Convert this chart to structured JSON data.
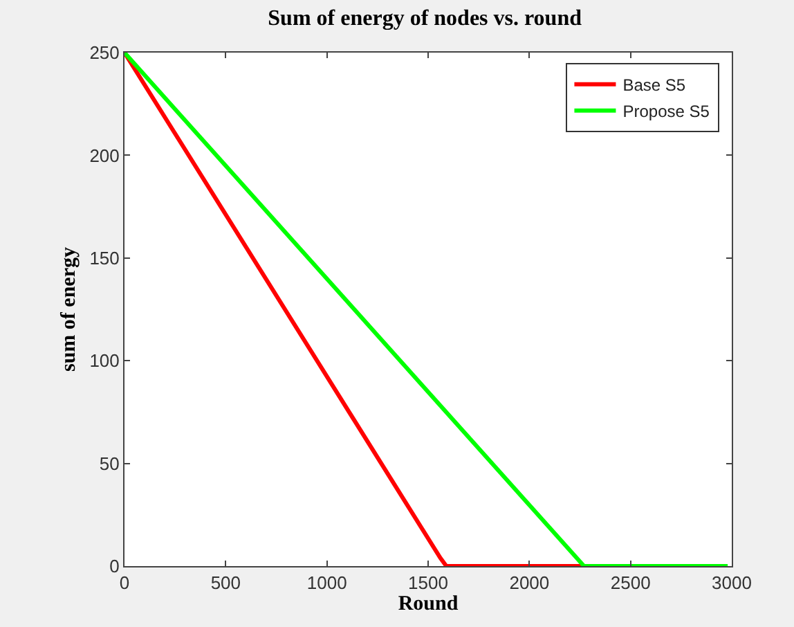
{
  "chart_data": {
    "type": "line",
    "title": "Sum of energy of nodes vs. round",
    "xlabel": "Round",
    "ylabel": "sum of energy",
    "series": [
      {
        "name": "Base S5",
        "color": "#ff0000",
        "x": [
          0,
          1560,
          1590,
          2270
        ],
        "values": [
          250,
          4,
          0,
          0
        ]
      },
      {
        "name": "Propose S5",
        "color": "#00ff00",
        "x": [
          0,
          2270,
          2980
        ],
        "values": [
          250,
          0,
          0
        ]
      }
    ],
    "xlim": [
      0,
      3000
    ],
    "xticks": [
      0,
      500,
      1000,
      1500,
      2000,
      2500,
      3000
    ],
    "ylim": [
      0,
      250
    ],
    "yticks": [
      0,
      50,
      100,
      150,
      200,
      250
    ],
    "legend": "top right",
    "marker": "none",
    "line_style": "solid"
  }
}
